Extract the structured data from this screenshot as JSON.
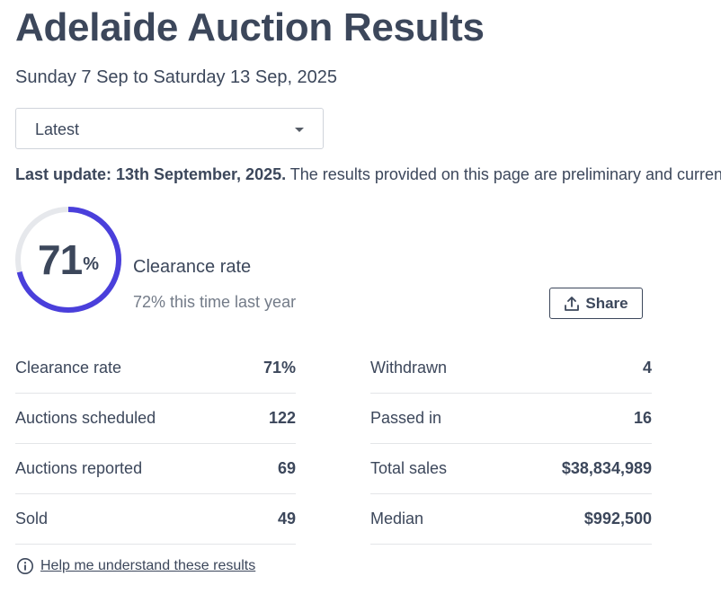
{
  "header": {
    "title": "Adelaide Auction Results",
    "date_range": "Sunday 7 Sep to Saturday 13 Sep, 2025"
  },
  "week_select": {
    "selected": "Latest"
  },
  "update": {
    "bold": "Last update: 13th September, 2025.",
    "text": " The results provided on this page are preliminary and currently being updated"
  },
  "clearance": {
    "rate_value": "71",
    "rate_unit": "%",
    "rate_fraction": 0.71,
    "label": "Clearance rate",
    "last_year": "72% this time last year",
    "ring_color": "#4a3fdb",
    "track_color": "#e6e8ec"
  },
  "share": {
    "label": "Share",
    "icon": "share-upload-icon"
  },
  "stats": {
    "left": [
      {
        "label": "Clearance rate",
        "value": "71%"
      },
      {
        "label": "Auctions scheduled",
        "value": "122"
      },
      {
        "label": "Auctions reported",
        "value": "69"
      },
      {
        "label": "Sold",
        "value": "49"
      }
    ],
    "right": [
      {
        "label": "Withdrawn",
        "value": "4"
      },
      {
        "label": "Passed in",
        "value": "16"
      },
      {
        "label": "Total sales",
        "value": "$38,834,989"
      },
      {
        "label": "Median",
        "value": "$992,500"
      }
    ]
  },
  "help": {
    "label": "Help me understand these results",
    "icon": "info-icon"
  },
  "colors": {
    "text": "#3c475b",
    "muted": "#737b88"
  }
}
